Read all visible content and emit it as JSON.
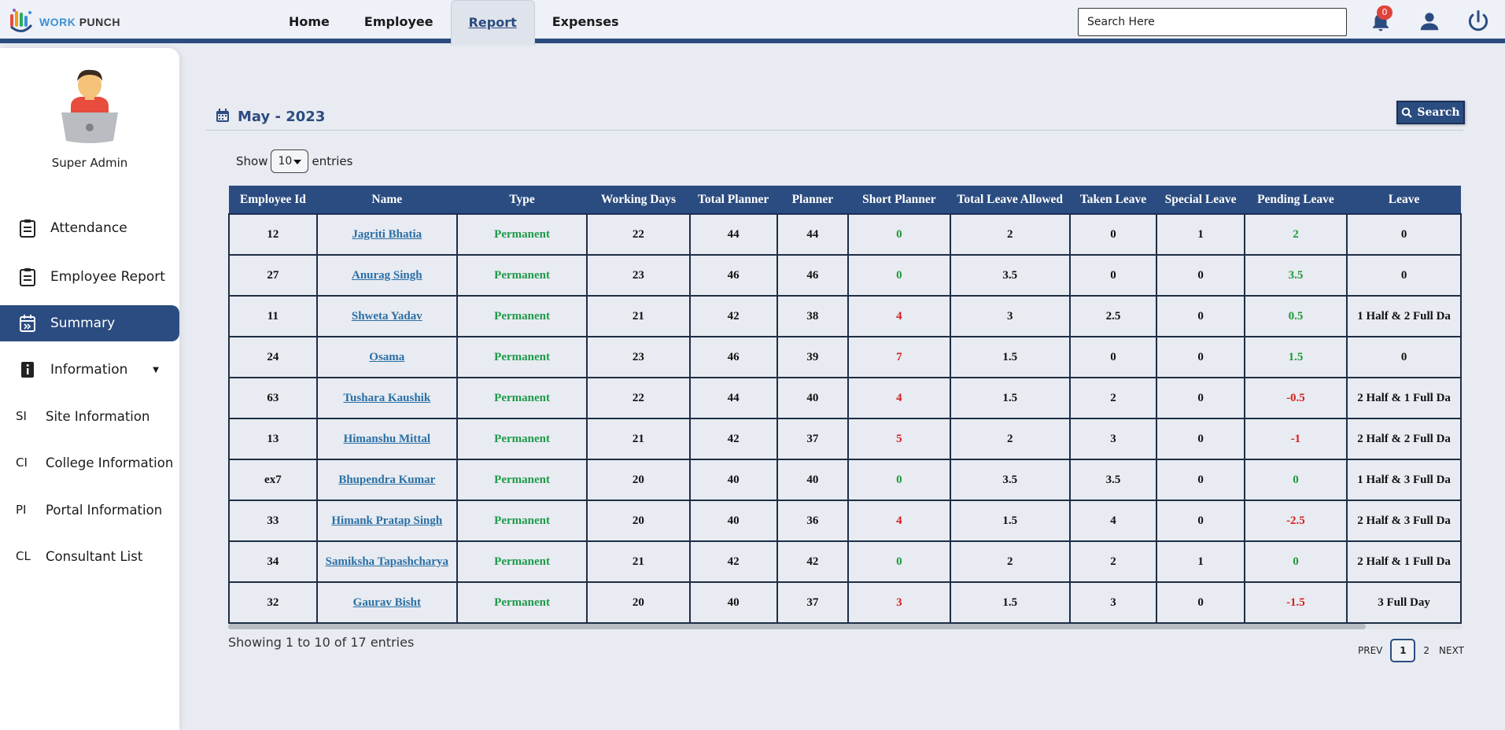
{
  "app": {
    "brand_part1": "WORK",
    "brand_part2": "PUNCH"
  },
  "nav": [
    {
      "label": "Home"
    },
    {
      "label": "Employee"
    },
    {
      "label": "Report"
    },
    {
      "label": "Expenses"
    }
  ],
  "search": {
    "placeholder": "Search Here"
  },
  "notifications": {
    "count": "0"
  },
  "sidebar": {
    "user": "Super Admin",
    "items": [
      {
        "label": "Attendance"
      },
      {
        "label": "Employee Report"
      },
      {
        "label": "Summary"
      },
      {
        "label": "Information"
      }
    ],
    "sub_items": [
      {
        "abbr": "SI",
        "label": "Site Information"
      },
      {
        "abbr": "CI",
        "label": "College Information"
      },
      {
        "abbr": "PI",
        "label": "Portal Information"
      },
      {
        "abbr": "CL",
        "label": "Consultant List"
      }
    ]
  },
  "report": {
    "month": "May - 2023",
    "search_label": "Search",
    "show_label": "Show",
    "entries_value": "10",
    "entries_label": "entries",
    "showing_text": "Showing 1 to 10 of 17 entries",
    "pager": {
      "prev": "PREV",
      "current": "1",
      "next_page": "2",
      "next": "NEXT"
    }
  },
  "table": {
    "columns": [
      "Employee Id",
      "Name",
      "Type",
      "Working Days",
      "Total Planner",
      "Planner",
      "Short Planner",
      "Total Leave Allowed",
      "Taken Leave",
      "Special Leave",
      "Pending Leave",
      "Leave"
    ],
    "rows": [
      [
        "12",
        "Jagriti Bhatia",
        "Permanent",
        "22",
        "44",
        "44",
        "0",
        "2",
        "0",
        "1",
        "2",
        "0"
      ],
      [
        "27",
        "Anurag Singh",
        "Permanent",
        "23",
        "46",
        "46",
        "0",
        "3.5",
        "0",
        "0",
        "3.5",
        "0"
      ],
      [
        "11",
        "Shweta Yadav",
        "Permanent",
        "21",
        "42",
        "38",
        "4",
        "3",
        "2.5",
        "0",
        "0.5",
        "1 Half & 2 Full Da"
      ],
      [
        "24",
        "Osama",
        "Permanent",
        "23",
        "46",
        "39",
        "7",
        "1.5",
        "0",
        "0",
        "1.5",
        "0"
      ],
      [
        "63",
        "Tushara Kaushik",
        "Permanent",
        "22",
        "44",
        "40",
        "4",
        "1.5",
        "2",
        "0",
        "-0.5",
        "2 Half & 1 Full Da"
      ],
      [
        "13",
        "Himanshu Mittal",
        "Permanent",
        "21",
        "42",
        "37",
        "5",
        "2",
        "3",
        "0",
        "-1",
        "2 Half & 2 Full Da"
      ],
      [
        "ex7",
        "Bhupendra Kumar",
        "Permanent",
        "20",
        "40",
        "40",
        "0",
        "3.5",
        "3.5",
        "0",
        "0",
        "1 Half & 3 Full Da"
      ],
      [
        "33",
        "Himank Pratap Singh",
        "Permanent",
        "20",
        "40",
        "36",
        "4",
        "1.5",
        "4",
        "0",
        "-2.5",
        "2 Half & 3 Full Da"
      ],
      [
        "34",
        "Samiksha Tapashcharya",
        "Permanent",
        "21",
        "42",
        "42",
        "0",
        "2",
        "2",
        "1",
        "0",
        "2 Half & 1 Full Da"
      ],
      [
        "32",
        "Gaurav Bisht",
        "Permanent",
        "20",
        "40",
        "37",
        "3",
        "1.5",
        "3",
        "0",
        "-1.5",
        "3 Full Day"
      ]
    ]
  },
  "colors": {
    "primary": "#2b4c80",
    "positive": "#1e9a3a",
    "negative": "#d81e1e",
    "link": "#2a6fa5"
  }
}
